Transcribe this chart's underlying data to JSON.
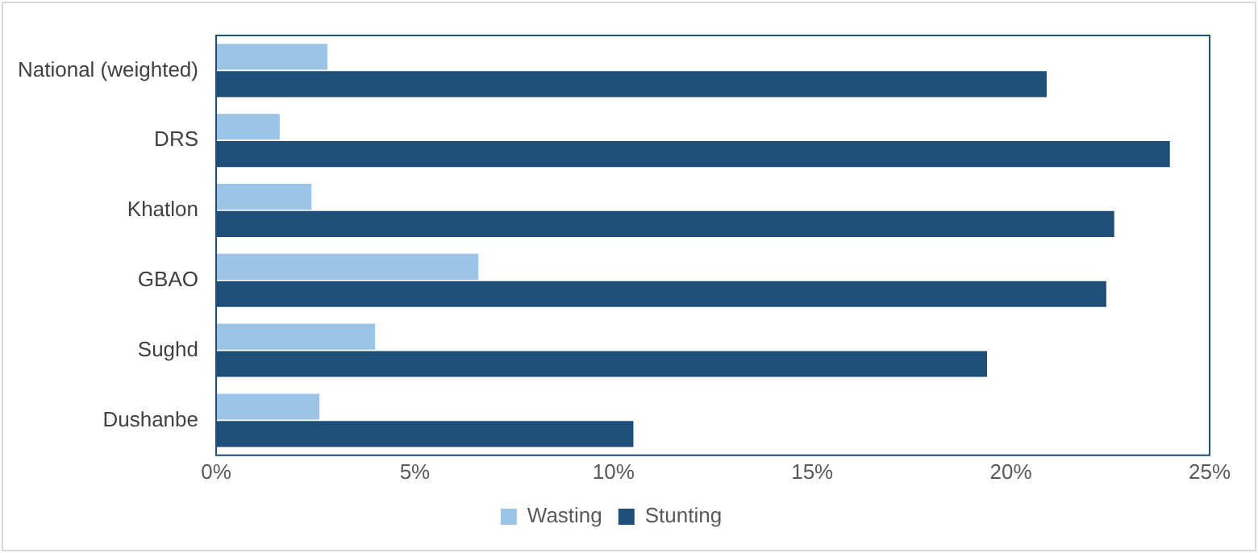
{
  "chart_data": {
    "type": "bar",
    "orientation": "horizontal",
    "categories": [
      "National (weighted)",
      "DRS",
      "Khatlon",
      "GBAO",
      "Sughd",
      "Dushanbe"
    ],
    "series": [
      {
        "name": "Wasting",
        "color": "#9dc3e6",
        "values": [
          2.8,
          1.6,
          2.4,
          6.6,
          4.0,
          2.6
        ]
      },
      {
        "name": "Stunting",
        "color": "#1f4e79",
        "values": [
          20.9,
          24.0,
          22.6,
          22.4,
          19.4,
          10.5
        ]
      }
    ],
    "xlim": [
      0,
      25
    ],
    "xticks": [
      {
        "value": 0,
        "label": "0%"
      },
      {
        "value": 5,
        "label": "5%"
      },
      {
        "value": 10,
        "label": "10%"
      },
      {
        "value": 15,
        "label": "15%"
      },
      {
        "value": 20,
        "label": "20%"
      },
      {
        "value": 25,
        "label": "25%"
      }
    ],
    "grid": false,
    "legend": "bottom"
  }
}
